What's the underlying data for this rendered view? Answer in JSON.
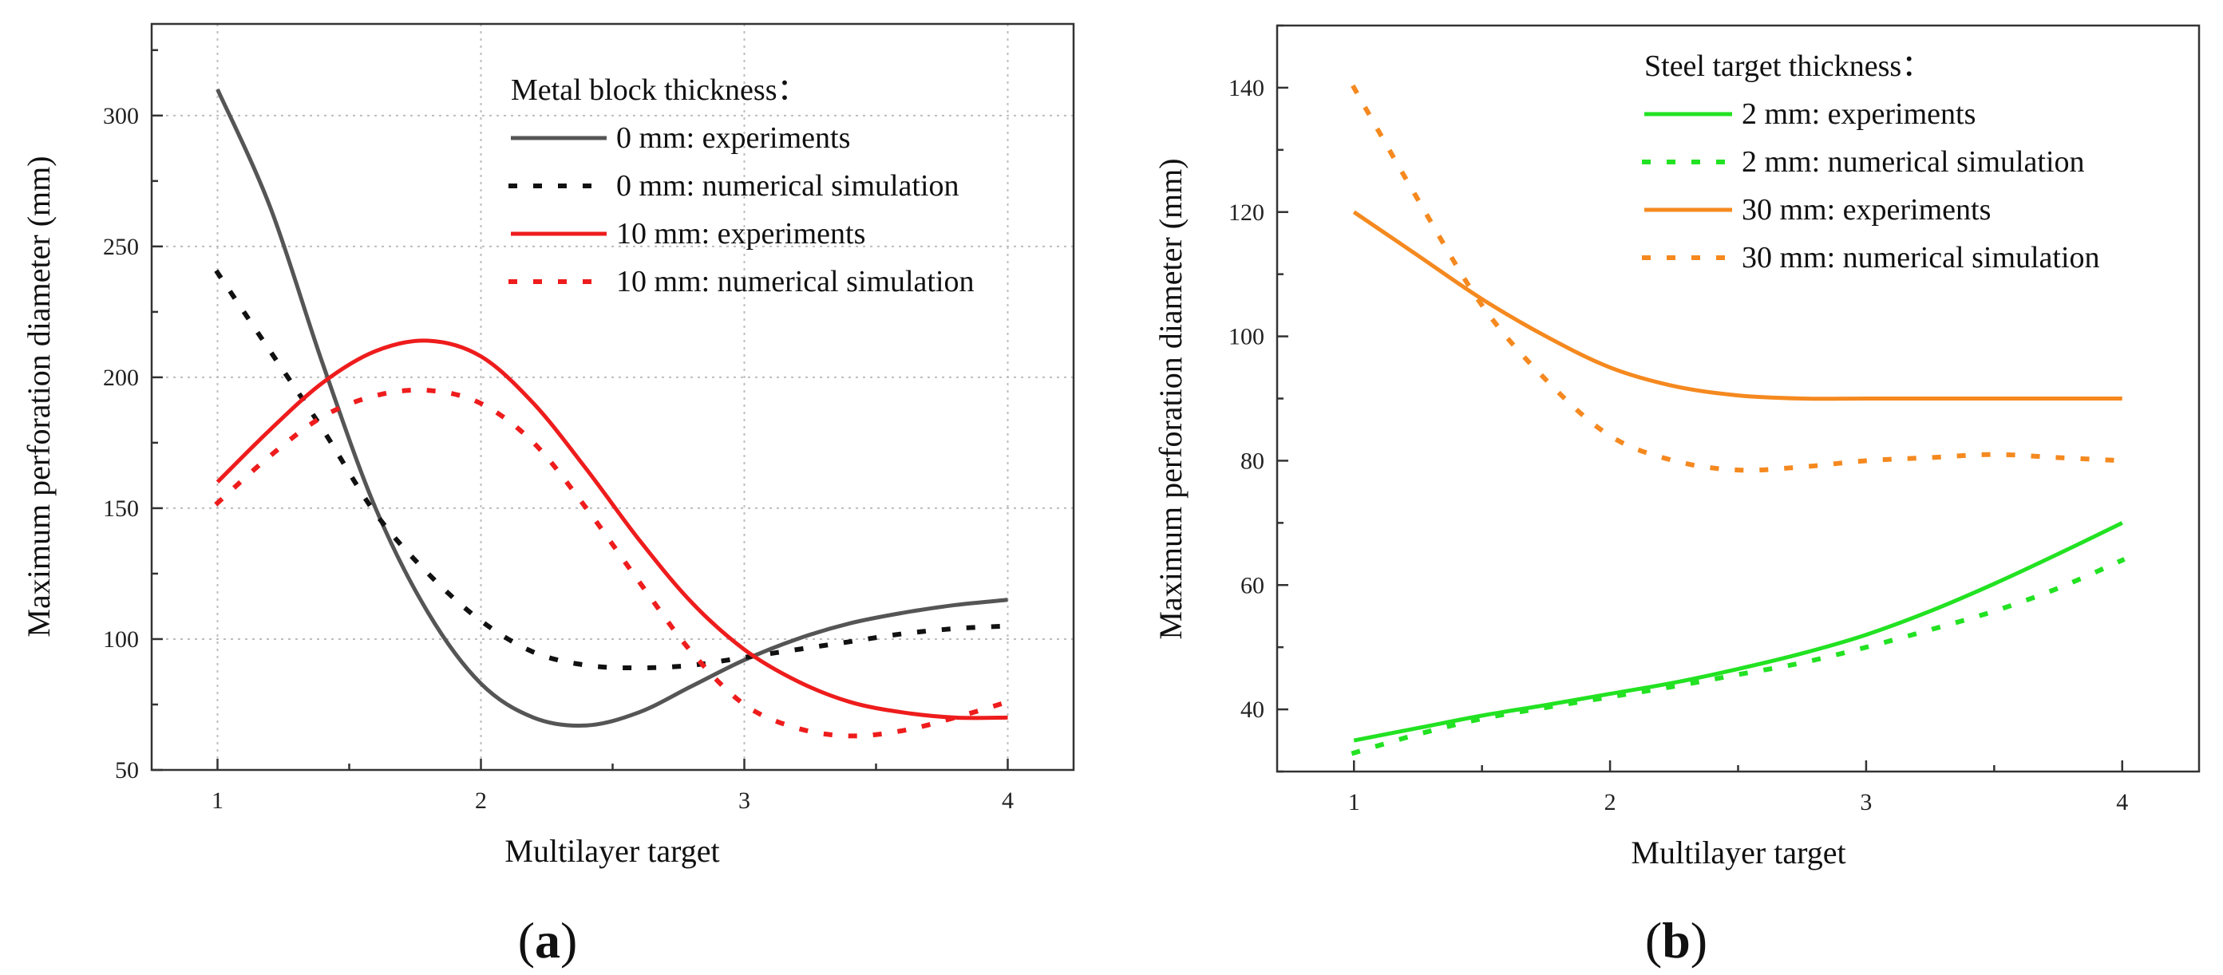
{
  "chart_data": [
    {
      "id": "a",
      "type": "line",
      "panel_label": "a",
      "xlabel": "Multilayer target",
      "ylabel": "Maximum perforation diameter (mm)",
      "xlim": [
        0.75,
        4.25
      ],
      "ylim": [
        50,
        335
      ],
      "xticks": [
        1,
        2,
        3,
        4
      ],
      "yticks": [
        50,
        100,
        150,
        200,
        250,
        300
      ],
      "grid": true,
      "legend_title": "Metal block thickness：",
      "legend_position": "top-right",
      "series": [
        {
          "name": "0 mm: experiments",
          "color": "#555555",
          "style": "solid",
          "x": [
            1.0,
            1.2,
            1.4,
            1.6,
            1.8,
            2.0,
            2.2,
            2.4,
            2.6,
            2.8,
            3.0,
            3.2,
            3.4,
            3.6,
            3.8,
            4.0
          ],
          "y": [
            310,
            265,
            205,
            150,
            110,
            83,
            70,
            67,
            72,
            82,
            92,
            100,
            106,
            110,
            113,
            115
          ]
        },
        {
          "name": "0 mm: numerical simulation",
          "color": "#111111",
          "style": "dotted",
          "x": [
            1.0,
            1.2,
            1.4,
            1.6,
            1.8,
            2.0,
            2.2,
            2.4,
            2.6,
            2.8,
            3.0,
            3.2,
            3.4,
            3.6,
            3.8,
            4.0
          ],
          "y": [
            240,
            210,
            180,
            148,
            125,
            107,
            95,
            90,
            89,
            90,
            93,
            96,
            99,
            102,
            104,
            105
          ]
        },
        {
          "name": "10 mm: experiments",
          "color": "#ee1c1c",
          "style": "solid",
          "x": [
            1.0,
            1.2,
            1.4,
            1.6,
            1.8,
            2.0,
            2.2,
            2.4,
            2.6,
            2.8,
            3.0,
            3.2,
            3.4,
            3.6,
            3.8,
            4.0
          ],
          "y": [
            160,
            180,
            198,
            210,
            214,
            208,
            190,
            165,
            138,
            114,
            96,
            84,
            76,
            72,
            70,
            70
          ]
        },
        {
          "name": "10 mm: numerical simulation",
          "color": "#ee1c1c",
          "style": "dotted",
          "x": [
            1.0,
            1.2,
            1.4,
            1.6,
            1.8,
            2.0,
            2.2,
            2.4,
            2.6,
            2.8,
            3.0,
            3.2,
            3.4,
            3.6,
            3.8,
            4.0
          ],
          "y": [
            152,
            170,
            185,
            193,
            195,
            190,
            175,
            150,
            122,
            95,
            75,
            66,
            63,
            65,
            70,
            76
          ]
        }
      ]
    },
    {
      "id": "b",
      "type": "line",
      "panel_label": "b",
      "xlabel": "Multilayer target",
      "ylabel": "Maximum perforation diameter (mm)",
      "xlim": [
        0.7,
        4.3
      ],
      "ylim": [
        30,
        150
      ],
      "xticks": [
        1,
        2,
        3,
        4
      ],
      "yticks": [
        40,
        60,
        80,
        100,
        120,
        140
      ],
      "grid": false,
      "legend_title": "Steel target thickness：",
      "legend_position": "top-right",
      "series": [
        {
          "name": "2 mm: experiments",
          "color": "#22e222",
          "style": "solid",
          "x": [
            1.0,
            1.25,
            1.5,
            1.75,
            2.0,
            2.25,
            2.5,
            2.75,
            3.0,
            3.25,
            3.5,
            3.75,
            4.0
          ],
          "y": [
            35,
            37,
            39,
            40.7,
            42.5,
            44.3,
            46.5,
            49,
            52,
            55.8,
            60.2,
            65,
            70
          ]
        },
        {
          "name": "2 mm: numerical simulation",
          "color": "#22e222",
          "style": "dotted",
          "x": [
            1.0,
            1.25,
            1.5,
            1.75,
            2.0,
            2.25,
            2.5,
            2.75,
            3.0,
            3.25,
            3.5,
            3.75,
            4.0
          ],
          "y": [
            33,
            36,
            38.5,
            40.3,
            42,
            43.7,
            45.6,
            47.5,
            50,
            52.8,
            55.8,
            59.5,
            64
          ]
        },
        {
          "name": "30 mm: experiments",
          "color": "#f5891f",
          "style": "solid",
          "x": [
            1.0,
            1.25,
            1.5,
            1.75,
            2.0,
            2.25,
            2.5,
            2.75,
            3.0,
            3.25,
            3.5,
            3.75,
            4.0
          ],
          "y": [
            120,
            113,
            106,
            100,
            95,
            92,
            90.5,
            90,
            90,
            90,
            90,
            90,
            90
          ]
        },
        {
          "name": "30 mm: numerical simulation",
          "color": "#f5891f",
          "style": "dotted",
          "x": [
            1.0,
            1.25,
            1.5,
            1.75,
            2.0,
            2.25,
            2.5,
            2.75,
            3.0,
            3.25,
            3.5,
            3.75,
            4.0
          ],
          "y": [
            140,
            122,
            105,
            93,
            84,
            80,
            78.5,
            79,
            80,
            80.5,
            81,
            80.5,
            80
          ]
        }
      ]
    }
  ]
}
